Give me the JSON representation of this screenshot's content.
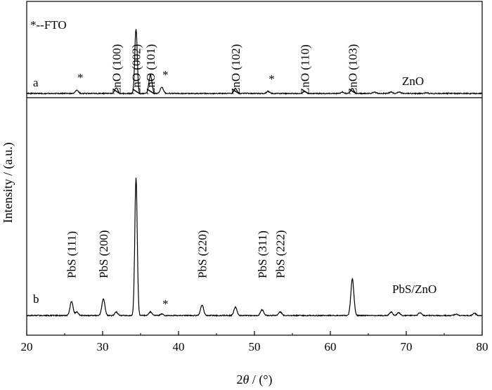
{
  "chart_data": {
    "type": "line",
    "xlabel_prefix": "2",
    "xlabel_italic": "θ",
    "xlabel_suffix": " / (°)",
    "ylabel": "Intensity / (a.u.)",
    "xlim": [
      20,
      80
    ],
    "xticks": [
      20,
      30,
      40,
      50,
      60,
      70,
      80
    ],
    "legend": "*--FTO",
    "series": [
      {
        "name": "ZnO",
        "letter": "a",
        "peaks": [
          [
            26.6,
            5
          ],
          [
            31.8,
            8
          ],
          [
            34.4,
            92
          ],
          [
            36.3,
            26
          ],
          [
            37.8,
            9
          ],
          [
            47.5,
            7
          ],
          [
            51.8,
            3
          ],
          [
            56.6,
            3
          ],
          [
            61.6,
            2
          ],
          [
            62.9,
            7
          ],
          [
            65.8,
            2
          ],
          [
            68.0,
            2
          ],
          [
            69.1,
            2
          ],
          [
            72.6,
            1
          ]
        ],
        "labels": [
          {
            "text": "ZnO (100)",
            "x": 31.8
          },
          {
            "text": "ZnO (002)",
            "x": 34.4
          },
          {
            "text": "ZnO (101)",
            "x": 36.3
          },
          {
            "text": "ZnO (102)",
            "x": 47.5
          },
          {
            "text": "ZnO (110)",
            "x": 56.6
          },
          {
            "text": "ZnO (103)",
            "x": 62.9
          }
        ],
        "stars": [
          26.6,
          37.8,
          51.8
        ]
      },
      {
        "name": "PbS/ZnO",
        "letter": "b",
        "peaks": [
          [
            25.9,
            20
          ],
          [
            26.6,
            5
          ],
          [
            30.1,
            24
          ],
          [
            31.8,
            5
          ],
          [
            34.4,
            196
          ],
          [
            36.3,
            5
          ],
          [
            37.8,
            2
          ],
          [
            43.1,
            15
          ],
          [
            47.5,
            12
          ],
          [
            51.0,
            8
          ],
          [
            53.4,
            5
          ],
          [
            62.9,
            52
          ],
          [
            68.0,
            5
          ],
          [
            69.0,
            4
          ],
          [
            71.8,
            4
          ],
          [
            76.6,
            2
          ],
          [
            79.0,
            3
          ]
        ],
        "labels": [
          {
            "text": "PbS (111)",
            "x": 25.9
          },
          {
            "text": "PbS (200)",
            "x": 30.1
          },
          {
            "text": "PbS (220)",
            "x": 43.1
          },
          {
            "text": "PbS (311)",
            "x": 51.0
          },
          {
            "text": "PbS (222)",
            "x": 53.4
          }
        ],
        "stars": [
          37.8
        ]
      }
    ]
  }
}
